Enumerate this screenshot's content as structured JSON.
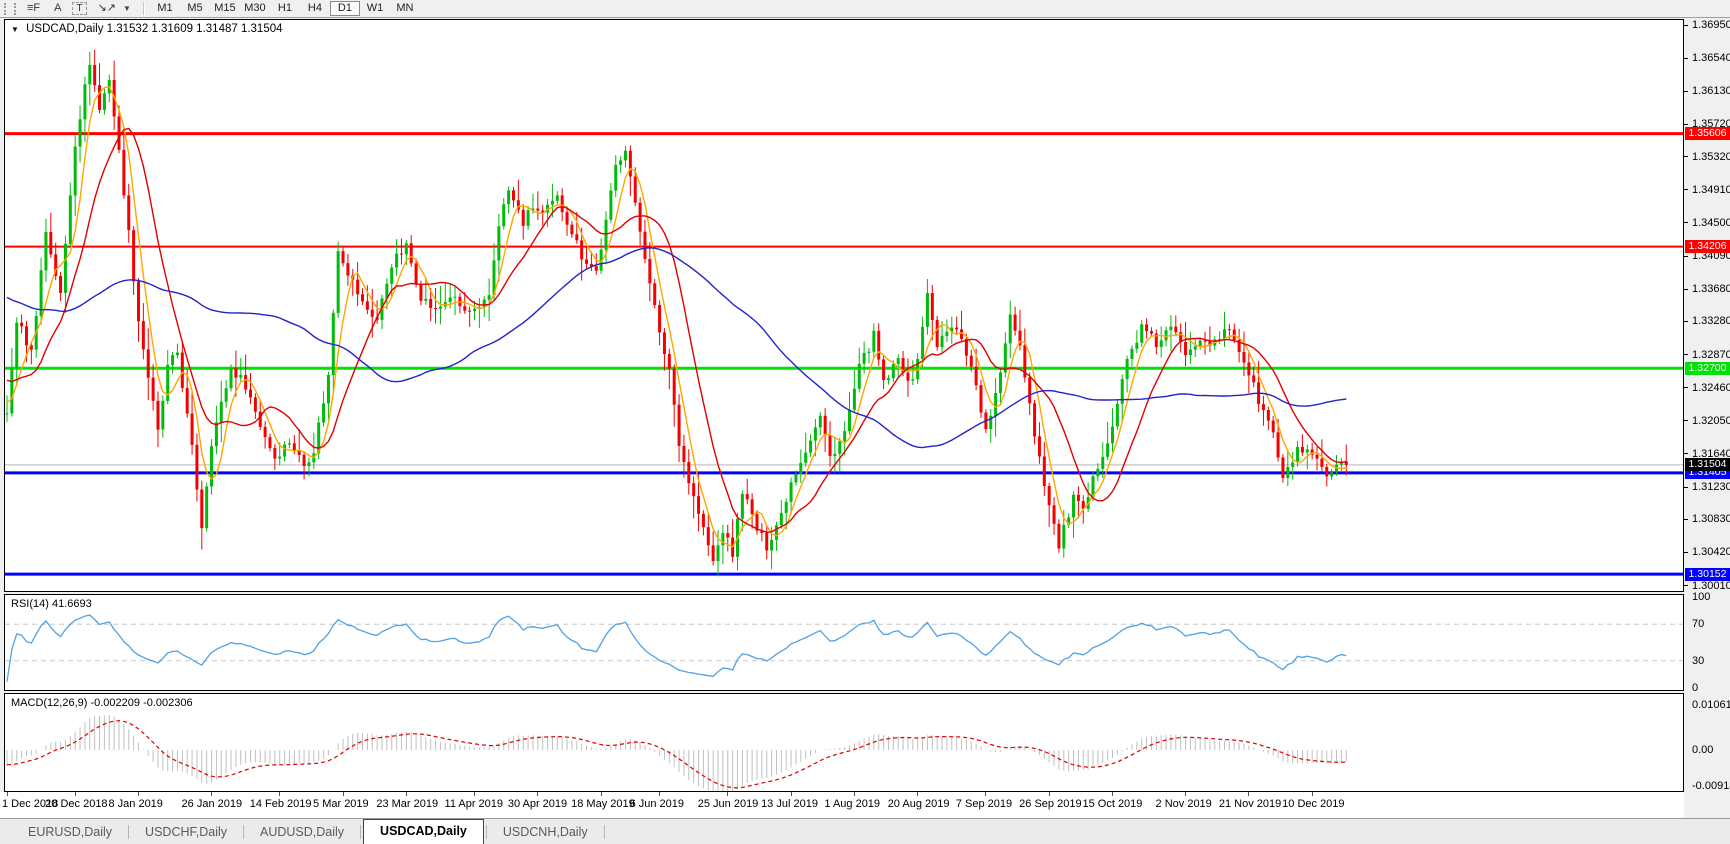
{
  "toolbar": {
    "tools": [
      {
        "name": "fibonacci-tool",
        "glyph": "≡F"
      },
      {
        "name": "text-tool",
        "glyph": "A"
      },
      {
        "name": "label-tool",
        "glyph": "T"
      },
      {
        "name": "arrows-tool",
        "glyph": "↘↗"
      }
    ],
    "dropdown_caret": "▼",
    "timeframes": [
      "M1",
      "M5",
      "M15",
      "M30",
      "H1",
      "H4",
      "D1",
      "W1",
      "MN"
    ],
    "active_timeframe": "D1"
  },
  "chart": {
    "title": "USDCAD,Daily",
    "ohlc": "1.31532 1.31609 1.31487 1.31504",
    "dropdown_icon": "▼"
  },
  "price_axis": {
    "labels": [
      "1.36950",
      "1.36540",
      "1.36130",
      "1.35720",
      "1.35320",
      "1.34910",
      "1.34500",
      "1.34090",
      "1.33680",
      "1.33280",
      "1.32870",
      "1.32460",
      "1.32050",
      "1.31640",
      "1.31230",
      "1.30830",
      "1.30420",
      "1.30010"
    ]
  },
  "rsi": {
    "label": "RSI(14) 41.6693",
    "value": 41.6693,
    "levels": [
      "100",
      "70",
      "30",
      "0"
    ]
  },
  "macd": {
    "label": "MACD(12,26,9) -0.002209 -0.002306",
    "main_value": -0.002209,
    "signal_value": -0.002306,
    "axis": [
      "0.010615",
      "0.00",
      "-0.009181"
    ]
  },
  "tabs": {
    "items": [
      "EURUSD,Daily",
      "USDCHF,Daily",
      "AUDUSD,Daily",
      "USDCAD,Daily",
      "USDCNH,Daily"
    ],
    "active": "USDCAD,Daily"
  },
  "colors": {
    "up": "#00BB0C",
    "down": "#F40000",
    "ma_fast": "#FFA600",
    "ma_mid": "#E00000",
    "ma_slow": "#2323C8",
    "rsi_line": "#4DA2E8",
    "rsi_level": "#C8C8C8",
    "macd_hist": "#C0C0C0",
    "macd_signal": "#E00000",
    "hline_red": "#FF0000",
    "hline_green": "#00E205",
    "hline_blue": "#0000FF",
    "current_line": "#B8B8B8",
    "current_badge": "#000000"
  },
  "chart_data": {
    "type": "candlestick",
    "symbol": "USDCAD",
    "timeframe": "Daily",
    "ylim": [
      1.3001,
      1.3695
    ],
    "bars": 276,
    "last_close": 1.31504,
    "hlines": [
      {
        "price": 1.35606,
        "label": "1.35606",
        "color": "#FF0000",
        "width": 3
      },
      {
        "price": 1.34206,
        "label": "1.34206",
        "color": "#FF0000",
        "width": 2
      },
      {
        "price": 1.327,
        "label": "1.32700",
        "color": "#00E205",
        "width": 3
      },
      {
        "price": 1.31405,
        "label": "1.31405",
        "color": "#0000FF",
        "width": 3
      },
      {
        "price": 1.30152,
        "label": "1.30152",
        "color": "#0000FF",
        "width": 3
      }
    ],
    "current_price": {
      "label": "1.31504",
      "value": 1.31504
    },
    "moving_averages": [
      {
        "name": "fast",
        "period": 5,
        "color": "#FFA600"
      },
      {
        "name": "mid",
        "period": 13,
        "color": "#E00000"
      },
      {
        "name": "slow",
        "period": 55,
        "color": "#2323C8"
      }
    ],
    "rsi_period": 14,
    "macd_params": [
      12,
      26,
      9
    ],
    "preroll_anchors": [
      [
        -60,
        1.346
      ],
      [
        -40,
        1.3415
      ],
      [
        -20,
        1.335
      ],
      [
        -8,
        1.327
      ]
    ],
    "close_anchors": [
      [
        0,
        1.321
      ],
      [
        2,
        1.333
      ],
      [
        5,
        1.329
      ],
      [
        8,
        1.344
      ],
      [
        11,
        1.336
      ],
      [
        14,
        1.355
      ],
      [
        17,
        1.365
      ],
      [
        19,
        1.359
      ],
      [
        21,
        1.363
      ],
      [
        24,
        1.349
      ],
      [
        27,
        1.333
      ],
      [
        31,
        1.319
      ],
      [
        33,
        1.327
      ],
      [
        35,
        1.329
      ],
      [
        38,
        1.317
      ],
      [
        40,
        1.3075
      ],
      [
        42,
        1.318
      ],
      [
        46,
        1.327
      ],
      [
        49,
        1.325
      ],
      [
        52,
        1.32
      ],
      [
        55,
        1.316
      ],
      [
        58,
        1.318
      ],
      [
        61,
        1.315
      ],
      [
        63,
        1.317
      ],
      [
        66,
        1.326
      ],
      [
        68,
        1.342
      ],
      [
        70,
        1.339
      ],
      [
        73,
        1.335
      ],
      [
        76,
        1.333
      ],
      [
        79,
        1.34
      ],
      [
        82,
        1.342
      ],
      [
        85,
        1.336
      ],
      [
        88,
        1.334
      ],
      [
        91,
        1.336
      ],
      [
        94,
        1.334
      ],
      [
        97,
        1.334
      ],
      [
        99,
        1.336
      ],
      [
        101,
        1.345
      ],
      [
        103,
        1.349
      ],
      [
        106,
        1.345
      ],
      [
        108,
        1.347
      ],
      [
        110,
        1.346
      ],
      [
        113,
        1.348
      ],
      [
        116,
        1.344
      ],
      [
        118,
        1.341
      ],
      [
        121,
        1.339
      ],
      [
        123,
        1.345
      ],
      [
        125,
        1.352
      ],
      [
        127,
        1.3545
      ],
      [
        129,
        1.347
      ],
      [
        132,
        1.338
      ],
      [
        134,
        1.331
      ],
      [
        136,
        1.327
      ],
      [
        138,
        1.318
      ],
      [
        140,
        1.313
      ],
      [
        142,
        1.309
      ],
      [
        145,
        1.303
      ],
      [
        147,
        1.307
      ],
      [
        149,
        1.304
      ],
      [
        151,
        1.312
      ],
      [
        154,
        1.307
      ],
      [
        156,
        1.305
      ],
      [
        159,
        1.309
      ],
      [
        161,
        1.313
      ],
      [
        164,
        1.317
      ],
      [
        167,
        1.321
      ],
      [
        169,
        1.316
      ],
      [
        172,
        1.319
      ],
      [
        175,
        1.327
      ],
      [
        178,
        1.331
      ],
      [
        180,
        1.325
      ],
      [
        183,
        1.328
      ],
      [
        186,
        1.325
      ],
      [
        189,
        1.336
      ],
      [
        191,
        1.33
      ],
      [
        194,
        1.332
      ],
      [
        196,
        1.331
      ],
      [
        199,
        1.325
      ],
      [
        201,
        1.319
      ],
      [
        204,
        1.326
      ],
      [
        206,
        1.334
      ],
      [
        208,
        1.33
      ],
      [
        211,
        1.319
      ],
      [
        214,
        1.31
      ],
      [
        216,
        1.305
      ],
      [
        219,
        1.311
      ],
      [
        221,
        1.309
      ],
      [
        224,
        1.315
      ],
      [
        227,
        1.32
      ],
      [
        230,
        1.328
      ],
      [
        233,
        1.332
      ],
      [
        236,
        1.33
      ],
      [
        239,
        1.332
      ],
      [
        242,
        1.329
      ],
      [
        245,
        1.331
      ],
      [
        248,
        1.33
      ],
      [
        251,
        1.332
      ],
      [
        254,
        1.328
      ],
      [
        257,
        1.323
      ],
      [
        260,
        1.319
      ],
      [
        262,
        1.313
      ],
      [
        265,
        1.317
      ],
      [
        268,
        1.316
      ],
      [
        271,
        1.3135
      ],
      [
        274,
        1.315
      ],
      [
        275,
        1.31504
      ]
    ],
    "date_axis": {
      "tick_bar_indices": [
        0,
        14,
        27,
        42,
        56,
        69,
        82,
        96,
        109,
        122,
        134,
        148,
        161,
        174,
        187,
        201,
        214,
        227,
        242,
        255,
        268
      ],
      "labels": [
        "1 Dec 2018",
        "20 Dec 2018",
        "8 Jan 2019",
        "26 Jan 2019",
        "14 Feb 2019",
        "5 Mar 2019",
        "23 Mar 2019",
        "11 Apr 2019",
        "30 Apr 2019",
        "18 May 2019",
        "6 Jun 2019",
        "25 Jun 2019",
        "13 Jul 2019",
        "1 Aug 2019",
        "20 Aug 2019",
        "7 Sep 2019",
        "26 Sep 2019",
        "15 Oct 2019",
        "2 Nov 2019",
        "21 Nov 2019",
        "10 Dec 2019"
      ]
    }
  }
}
